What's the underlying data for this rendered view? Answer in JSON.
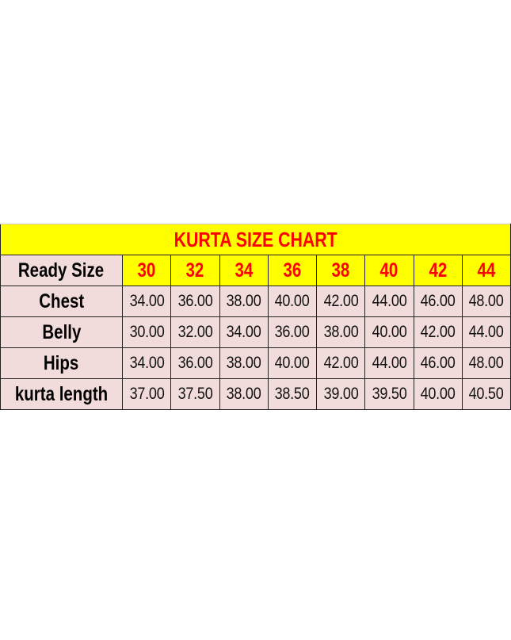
{
  "title": "KURTA SIZE CHART",
  "header_label": "Ready Size",
  "sizes": [
    "30",
    "32",
    "34",
    "36",
    "38",
    "40",
    "42",
    "44"
  ],
  "rows": [
    {
      "label": "Chest",
      "values": [
        "34.00",
        "36.00",
        "38.00",
        "40.00",
        "42.00",
        "44.00",
        "46.00",
        "48.00"
      ]
    },
    {
      "label": "Belly",
      "values": [
        "30.00",
        "32.00",
        "34.00",
        "36.00",
        "38.00",
        "40.00",
        "42.00",
        "44.00"
      ]
    },
    {
      "label": "Hips",
      "values": [
        "34.00",
        "36.00",
        "38.00",
        "40.00",
        "42.00",
        "44.00",
        "46.00",
        "48.00"
      ]
    },
    {
      "label": "kurta length",
      "values": [
        "37.00",
        "37.50",
        "38.00",
        "38.50",
        "39.00",
        "39.50",
        "40.00",
        "40.50"
      ]
    }
  ],
  "colors": {
    "title_bg": "#ffff00",
    "title_text": "#ff0000",
    "cell_bg": "#f2dcdb"
  }
}
